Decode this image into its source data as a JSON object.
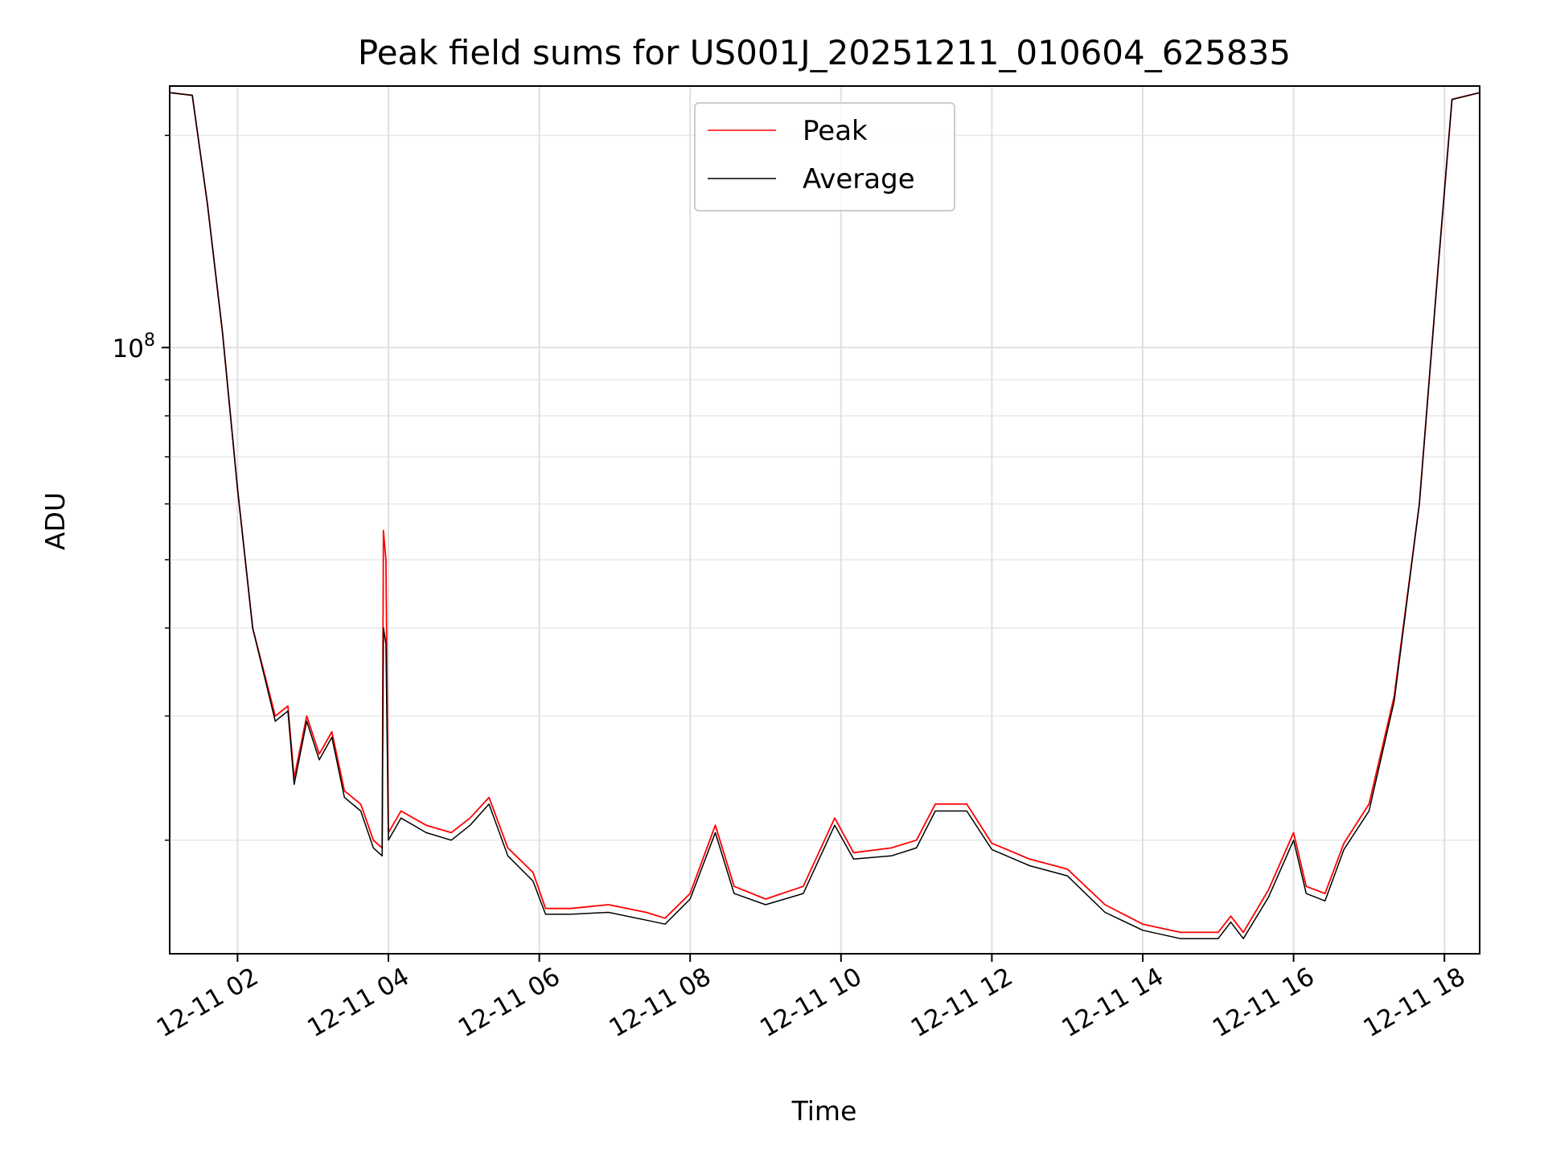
{
  "chart_data": {
    "type": "line",
    "title": "Peak field sums for US001J_20251211_010604_625835",
    "xlabel": "Time",
    "ylabel": "ADU",
    "yscale": "log",
    "grid": true,
    "legend_position": "top-center",
    "x_tick_labels": [
      "12-11 02",
      "12-11 04",
      "12-11 06",
      "12-11 08",
      "12-11 10",
      "12-11 12",
      "12-11 14",
      "12-11 16",
      "12-11 18"
    ],
    "y_tick_labels": [
      {
        "base": "10",
        "exp": "8"
      }
    ],
    "series": [
      {
        "name": "Peak",
        "color": "#ff0000",
        "points": [
          [
            "2025-12-11T01:06",
            230000000.0
          ],
          [
            "2025-12-11T01:24",
            228000000.0
          ],
          [
            "2025-12-11T01:36",
            160000000.0
          ],
          [
            "2025-12-11T01:48",
            105000000.0
          ],
          [
            "2025-12-11T02:00",
            63000000.0
          ],
          [
            "2025-12-11T02:12",
            40000000.0
          ],
          [
            "2025-12-11T02:30",
            30000000.0
          ],
          [
            "2025-12-11T02:40",
            31000000.0
          ],
          [
            "2025-12-11T02:45",
            24500000.0
          ],
          [
            "2025-12-11T02:55",
            30000000.0
          ],
          [
            "2025-12-11T03:05",
            26500000.0
          ],
          [
            "2025-12-11T03:15",
            28500000.0
          ],
          [
            "2025-12-11T03:25",
            23500000.0
          ],
          [
            "2025-12-11T03:38",
            22500000.0
          ],
          [
            "2025-12-11T03:48",
            20000000.0
          ],
          [
            "2025-12-11T03:55",
            19500000.0
          ],
          [
            "2025-12-11T03:56",
            55000000.0
          ],
          [
            "2025-12-11T03:58",
            50000000.0
          ],
          [
            "2025-12-11T04:00",
            20500000.0
          ],
          [
            "2025-12-11T04:10",
            22000000.0
          ],
          [
            "2025-12-11T04:30",
            21000000.0
          ],
          [
            "2025-12-11T04:50",
            20500000.0
          ],
          [
            "2025-12-11T05:05",
            21500000.0
          ],
          [
            "2025-12-11T05:20",
            23000000.0
          ],
          [
            "2025-12-11T05:35",
            19500000.0
          ],
          [
            "2025-12-11T05:55",
            18000000.0
          ],
          [
            "2025-12-11T06:05",
            16000000.0
          ],
          [
            "2025-12-11T06:25",
            16000000.0
          ],
          [
            "2025-12-11T06:55",
            16200000.0
          ],
          [
            "2025-12-11T07:25",
            15800000.0
          ],
          [
            "2025-12-11T07:40",
            15500000.0
          ],
          [
            "2025-12-11T08:00",
            16800000.0
          ],
          [
            "2025-12-11T08:20",
            21000000.0
          ],
          [
            "2025-12-11T08:35",
            17200000.0
          ],
          [
            "2025-12-11T09:00",
            16500000.0
          ],
          [
            "2025-12-11T09:30",
            17200000.0
          ],
          [
            "2025-12-11T09:55",
            21500000.0
          ],
          [
            "2025-12-11T10:10",
            19200000.0
          ],
          [
            "2025-12-11T10:40",
            19500000.0
          ],
          [
            "2025-12-11T11:00",
            20000000.0
          ],
          [
            "2025-12-11T11:15",
            22500000.0
          ],
          [
            "2025-12-11T11:40",
            22500000.0
          ],
          [
            "2025-12-11T12:00",
            19800000.0
          ],
          [
            "2025-12-11T12:30",
            18800000.0
          ],
          [
            "2025-12-11T13:00",
            18200000.0
          ],
          [
            "2025-12-11T13:30",
            16200000.0
          ],
          [
            "2025-12-11T14:00",
            15200000.0
          ],
          [
            "2025-12-11T14:30",
            14800000.0
          ],
          [
            "2025-12-11T15:00",
            14800000.0
          ],
          [
            "2025-12-11T15:10",
            15600000.0
          ],
          [
            "2025-12-11T15:20",
            14800000.0
          ],
          [
            "2025-12-11T15:40",
            17000000.0
          ],
          [
            "2025-12-11T16:00",
            20500000.0
          ],
          [
            "2025-12-11T16:10",
            17200000.0
          ],
          [
            "2025-12-11T16:25",
            16800000.0
          ],
          [
            "2025-12-11T16:40",
            19800000.0
          ],
          [
            "2025-12-11T17:00",
            22500000.0
          ],
          [
            "2025-12-11T17:20",
            32000000.0
          ],
          [
            "2025-12-11T17:40",
            60000000.0
          ],
          [
            "2025-12-11T17:55",
            130000000.0
          ],
          [
            "2025-12-11T18:06",
            225000000.0
          ],
          [
            "2025-12-11T18:28",
            230000000.0
          ]
        ]
      },
      {
        "name": "Average",
        "color": "#000000",
        "points": [
          [
            "2025-12-11T01:06",
            230000000.0
          ],
          [
            "2025-12-11T01:24",
            228000000.0
          ],
          [
            "2025-12-11T01:36",
            160000000.0
          ],
          [
            "2025-12-11T01:48",
            105000000.0
          ],
          [
            "2025-12-11T02:00",
            63000000.0
          ],
          [
            "2025-12-11T02:12",
            40000000.0
          ],
          [
            "2025-12-11T02:30",
            29500000.0
          ],
          [
            "2025-12-11T02:40",
            30500000.0
          ],
          [
            "2025-12-11T02:45",
            24000000.0
          ],
          [
            "2025-12-11T02:55",
            29500000.0
          ],
          [
            "2025-12-11T03:05",
            26000000.0
          ],
          [
            "2025-12-11T03:15",
            28000000.0
          ],
          [
            "2025-12-11T03:25",
            23000000.0
          ],
          [
            "2025-12-11T03:38",
            22000000.0
          ],
          [
            "2025-12-11T03:48",
            19500000.0
          ],
          [
            "2025-12-11T03:55",
            19000000.0
          ],
          [
            "2025-12-11T03:56",
            40000000.0
          ],
          [
            "2025-12-11T03:58",
            38000000.0
          ],
          [
            "2025-12-11T04:00",
            20000000.0
          ],
          [
            "2025-12-11T04:10",
            21500000.0
          ],
          [
            "2025-12-11T04:30",
            20500000.0
          ],
          [
            "2025-12-11T04:50",
            20000000.0
          ],
          [
            "2025-12-11T05:05",
            21000000.0
          ],
          [
            "2025-12-11T05:20",
            22500000.0
          ],
          [
            "2025-12-11T05:35",
            19000000.0
          ],
          [
            "2025-12-11T05:55",
            17500000.0
          ],
          [
            "2025-12-11T06:05",
            15700000.0
          ],
          [
            "2025-12-11T06:25",
            15700000.0
          ],
          [
            "2025-12-11T06:55",
            15800000.0
          ],
          [
            "2025-12-11T07:25",
            15400000.0
          ],
          [
            "2025-12-11T07:40",
            15200000.0
          ],
          [
            "2025-12-11T08:00",
            16500000.0
          ],
          [
            "2025-12-11T08:20",
            20500000.0
          ],
          [
            "2025-12-11T08:35",
            16800000.0
          ],
          [
            "2025-12-11T09:00",
            16200000.0
          ],
          [
            "2025-12-11T09:30",
            16800000.0
          ],
          [
            "2025-12-11T09:55",
            21000000.0
          ],
          [
            "2025-12-11T10:10",
            18800000.0
          ],
          [
            "2025-12-11T10:40",
            19000000.0
          ],
          [
            "2025-12-11T11:00",
            19500000.0
          ],
          [
            "2025-12-11T11:15",
            22000000.0
          ],
          [
            "2025-12-11T11:40",
            22000000.0
          ],
          [
            "2025-12-11T12:00",
            19400000.0
          ],
          [
            "2025-12-11T12:30",
            18400000.0
          ],
          [
            "2025-12-11T13:00",
            17800000.0
          ],
          [
            "2025-12-11T13:30",
            15800000.0
          ],
          [
            "2025-12-11T14:00",
            14900000.0
          ],
          [
            "2025-12-11T14:30",
            14500000.0
          ],
          [
            "2025-12-11T15:00",
            14500000.0
          ],
          [
            "2025-12-11T15:10",
            15300000.0
          ],
          [
            "2025-12-11T15:20",
            14500000.0
          ],
          [
            "2025-12-11T15:40",
            16600000.0
          ],
          [
            "2025-12-11T16:00",
            20000000.0
          ],
          [
            "2025-12-11T16:10",
            16800000.0
          ],
          [
            "2025-12-11T16:25",
            16400000.0
          ],
          [
            "2025-12-11T16:40",
            19400000.0
          ],
          [
            "2025-12-11T17:00",
            22000000.0
          ],
          [
            "2025-12-11T17:20",
            31500000.0
          ],
          [
            "2025-12-11T17:40",
            60000000.0
          ],
          [
            "2025-12-11T17:55",
            130000000.0
          ],
          [
            "2025-12-11T18:06",
            225000000.0
          ],
          [
            "2025-12-11T18:28",
            230000000.0
          ]
        ]
      }
    ]
  }
}
